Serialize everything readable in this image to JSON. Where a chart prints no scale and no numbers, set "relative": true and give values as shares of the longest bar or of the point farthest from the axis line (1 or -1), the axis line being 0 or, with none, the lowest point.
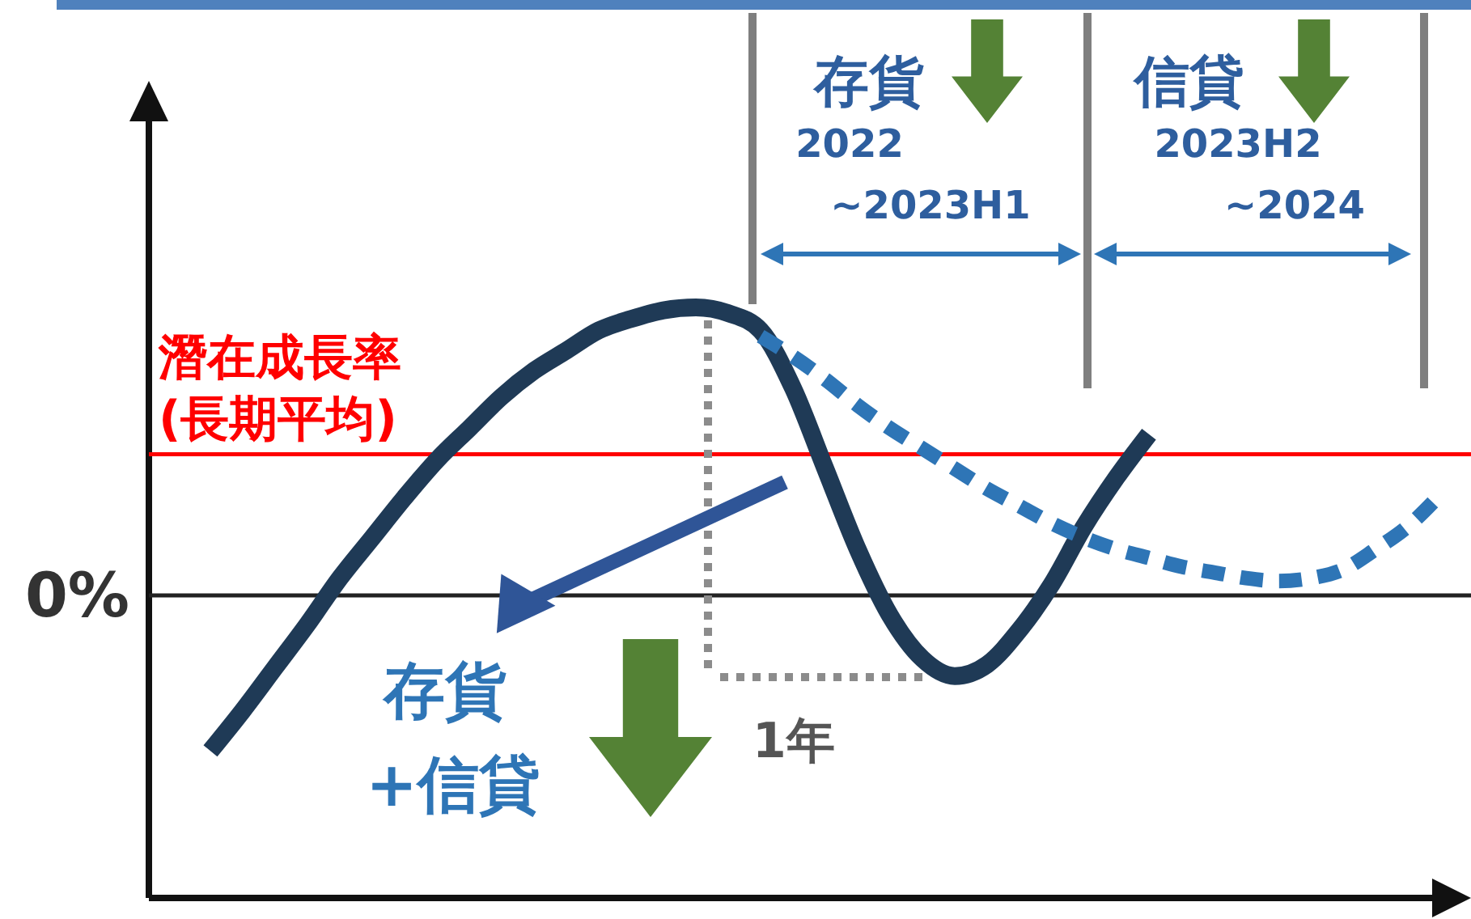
{
  "chart_data": {
    "type": "line",
    "relative": true,
    "categories": [
      null,
      null,
      null,
      null,
      null,
      null,
      null,
      null,
      null,
      null,
      null,
      null,
      null,
      null,
      null,
      null,
      null,
      null,
      null,
      null,
      null,
      null,
      null,
      null,
      null,
      null,
      null,
      null,
      null,
      null,
      null,
      null,
      null,
      null,
      null,
      null,
      null,
      null,
      null
    ],
    "series": [
      {
        "color": "#1f3a56",
        "line_style": "solid",
        "values": [
          -0.54,
          -0.4,
          -0.25,
          -0.1,
          0.06,
          0.2,
          0.34,
          0.47,
          0.58,
          0.69,
          0.78,
          0.85,
          0.92,
          0.96,
          0.99,
          1.0,
          0.98,
          0.92,
          0.72,
          0.44,
          0.16,
          -0.07,
          -0.22,
          -0.28,
          -0.24,
          -0.12,
          0.04,
          0.24,
          0.41,
          0.56,
          null,
          null,
          null,
          null,
          null,
          null,
          null,
          null,
          null
        ]
      },
      {
        "color": "#2e75b6",
        "line_style": "dashed",
        "values": [
          null,
          null,
          null,
          null,
          null,
          null,
          null,
          null,
          null,
          null,
          null,
          null,
          null,
          null,
          null,
          null,
          null,
          0.9,
          0.83,
          0.75,
          0.66,
          0.58,
          0.51,
          0.44,
          0.37,
          0.31,
          0.25,
          0.2,
          0.16,
          0.13,
          0.1,
          0.08,
          0.06,
          0.05,
          0.06,
          0.09,
          0.16,
          0.24,
          0.35
        ]
      }
    ],
    "ref_lines": [
      {
        "axis": "y",
        "value": 0,
        "label": "0%",
        "color": "#222222"
      },
      {
        "axis": "y",
        "value": 0.49,
        "label": "潛在成長率\n(長期平均)",
        "color": "#ff0000"
      }
    ],
    "annotations": [
      "存貨",
      "2022",
      "~2023H1",
      "信貸",
      "2023H2",
      "~2024",
      "存貨",
      "+信貸",
      "1年"
    ]
  }
}
